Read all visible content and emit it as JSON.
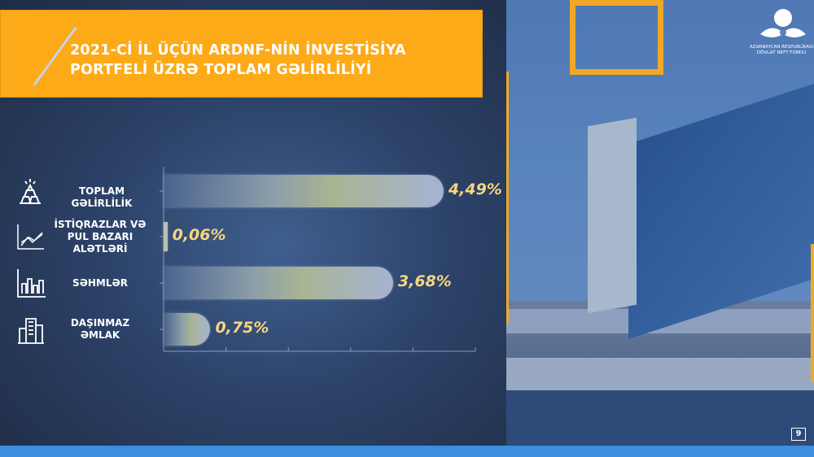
{
  "slide": {
    "title_line1": "2021-Cİ İL ÜÇÜN ARDNF-NİN İNVESTİSİYA",
    "title_line2": "PORTFELİ ÜZRƏ TOPLAM GƏLİRLİLİYİ",
    "page_number": "9",
    "logo": {
      "line1": "AZƏRBAYCAN RESPUBLİKASI",
      "line2": "DÖVLƏT NEFT FONDU"
    },
    "colors": {
      "banner": "#fdaa18",
      "value_text": "#f7d57e",
      "bottom_strip": "#3c8ee0"
    }
  },
  "chart_data": {
    "type": "bar",
    "orientation": "horizontal",
    "categories": [
      "TOPLAM GƏLİRLİLİK",
      "İSTİQRAZLAR VƏ PUL BAZARI ALƏTLƏRİ",
      "SƏHMLƏR",
      "DAŞINMAZ ƏMLAK"
    ],
    "category_lines": [
      [
        "TOPLAM GƏLİRLİLİK"
      ],
      [
        "İSTİQRAZLAR  VƏ",
        "PUL BAZARI",
        "ALƏTLƏRİ"
      ],
      [
        "SƏHMLƏR"
      ],
      [
        "DAŞINMAZ",
        "ƏMLAK"
      ]
    ],
    "icons": [
      "gold-bars-icon",
      "line-chart-icon",
      "bar-chart-icon",
      "buildings-icon"
    ],
    "values": [
      4.49,
      0.06,
      3.68,
      0.75
    ],
    "value_labels": [
      "4,49%",
      "0,06%",
      "3,68%",
      "0,75%"
    ],
    "unit": "%",
    "xlim": [
      0,
      5
    ],
    "x_ticks": [
      0,
      1,
      2,
      3,
      4,
      5
    ],
    "grid": false
  }
}
